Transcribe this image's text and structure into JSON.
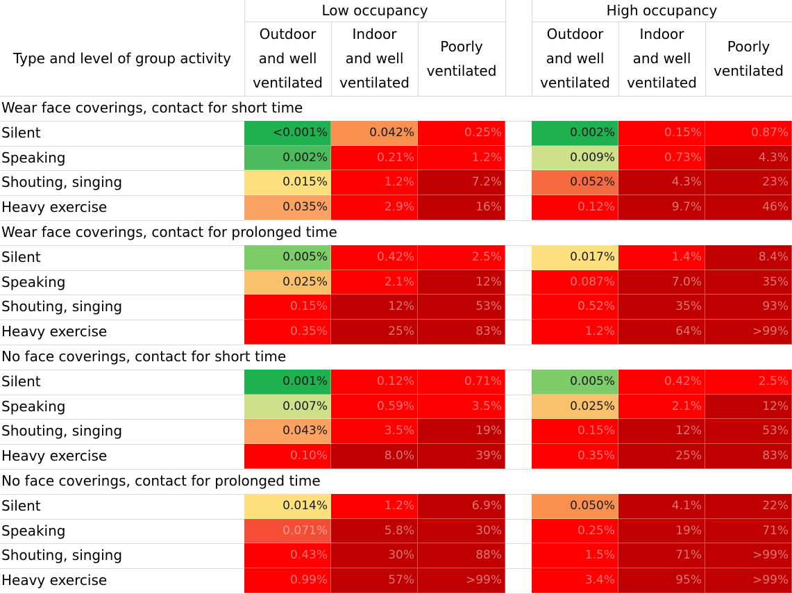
{
  "header": {
    "row_label": "Type and level of group activity",
    "groups": [
      "Low occupancy",
      "High occupancy"
    ],
    "columns": [
      "Outdoor\nand well\nventilated",
      "Indoor\nand well\nventilated",
      "Poorly\nventilated"
    ]
  },
  "colors": {
    "very_low": "#1fb04f",
    "low": "#4cbb5e",
    "lowish": "#7ecb6a",
    "low_mid": "#cfe08a",
    "mid_yellow": "#fde07e",
    "mid_light_orange": "#f9c06c",
    "mid_orange": "#f9a262",
    "orange": "#f89050",
    "orange_red": "#f56a40",
    "red_orange": "#f44d35",
    "high": "#ff0000",
    "very_high": "#c00000"
  },
  "chart_data": {
    "type": "table",
    "title": "",
    "column_groups": [
      "Low occupancy",
      "High occupancy"
    ],
    "columns": [
      "Outdoor and well ventilated",
      "Indoor and well ventilated",
      "Poorly ventilated"
    ],
    "sections": [
      {
        "name": "Wear face coverings, contact for short time",
        "rows": [
          {
            "label": "Silent",
            "values": [
              "<0.001%",
              "0.042%",
              "0.25%",
              "0.002%",
              "0.15%",
              "0.87%"
            ],
            "colors": [
              "very_low",
              "orange",
              "high",
              "very_low",
              "high",
              "high"
            ]
          },
          {
            "label": "Speaking",
            "values": [
              "0.002%",
              "0.21%",
              "1.2%",
              "0.009%",
              "0.73%",
              "4.3%"
            ],
            "colors": [
              "low",
              "high",
              "high",
              "low_mid",
              "high",
              "very_high"
            ]
          },
          {
            "label": "Shouting, singing",
            "values": [
              "0.015%",
              "1.2%",
              "7.2%",
              "0.052%",
              "4.3%",
              "23%"
            ],
            "colors": [
              "mid_yellow",
              "high",
              "very_high",
              "orange_red",
              "very_high",
              "very_high"
            ]
          },
          {
            "label": "Heavy exercise",
            "values": [
              "0.035%",
              "2.9%",
              "16%",
              "0.12%",
              "9.7%",
              "46%"
            ],
            "colors": [
              "mid_orange",
              "high",
              "very_high",
              "high",
              "very_high",
              "very_high"
            ]
          }
        ]
      },
      {
        "name": "Wear face coverings, contact for prolonged time",
        "rows": [
          {
            "label": "Silent",
            "values": [
              "0.005%",
              "0.42%",
              "2.5%",
              "0.017%",
              "1.4%",
              "8.4%"
            ],
            "colors": [
              "lowish",
              "high",
              "high",
              "mid_yellow",
              "high",
              "very_high"
            ]
          },
          {
            "label": "Speaking",
            "values": [
              "0.025%",
              "2.1%",
              "12%",
              "0.087%",
              "7.0%",
              "35%"
            ],
            "colors": [
              "mid_light_orange",
              "high",
              "very_high",
              "high",
              "very_high",
              "very_high"
            ]
          },
          {
            "label": "Shouting, singing",
            "values": [
              "0.15%",
              "12%",
              "53%",
              "0.52%",
              "35%",
              "93%"
            ],
            "colors": [
              "high",
              "very_high",
              "very_high",
              "high",
              "very_high",
              "very_high"
            ]
          },
          {
            "label": "Heavy exercise",
            "values": [
              "0.35%",
              "25%",
              "83%",
              "1.2%",
              "64%",
              ">99%"
            ],
            "colors": [
              "high",
              "very_high",
              "very_high",
              "high",
              "very_high",
              "very_high"
            ]
          }
        ]
      },
      {
        "name": "No face coverings, contact for short time",
        "rows": [
          {
            "label": "Silent",
            "values": [
              "0.001%",
              "0.12%",
              "0.71%",
              "0.005%",
              "0.42%",
              "2.5%"
            ],
            "colors": [
              "very_low",
              "high",
              "high",
              "lowish",
              "high",
              "high"
            ]
          },
          {
            "label": "Speaking",
            "values": [
              "0.007%",
              "0.59%",
              "3.5%",
              "0.025%",
              "2.1%",
              "12%"
            ],
            "colors": [
              "low_mid",
              "high",
              "high",
              "mid_light_orange",
              "high",
              "very_high"
            ]
          },
          {
            "label": "Shouting, singing",
            "values": [
              "0.043%",
              "3.5%",
              "19%",
              "0.15%",
              "12%",
              "53%"
            ],
            "colors": [
              "mid_orange",
              "high",
              "very_high",
              "high",
              "very_high",
              "very_high"
            ]
          },
          {
            "label": "Heavy exercise",
            "values": [
              "0.10%",
              "8.0%",
              "39%",
              "0.35%",
              "25%",
              "83%"
            ],
            "colors": [
              "high",
              "very_high",
              "very_high",
              "high",
              "very_high",
              "very_high"
            ]
          }
        ]
      },
      {
        "name": "No face coverings, contact for prolonged time",
        "rows": [
          {
            "label": "Silent",
            "values": [
              "0.014%",
              "1.2%",
              "6.9%",
              "0.050%",
              "4.1%",
              "22%"
            ],
            "colors": [
              "mid_yellow",
              "high",
              "very_high",
              "orange",
              "very_high",
              "very_high"
            ]
          },
          {
            "label": "Speaking",
            "values": [
              "0.071%",
              "5.8%",
              "30%",
              "0.25%",
              "19%",
              "71%"
            ],
            "colors": [
              "red_orange",
              "very_high",
              "very_high",
              "high",
              "very_high",
              "very_high"
            ]
          },
          {
            "label": "Shouting, singing",
            "values": [
              "0.43%",
              "30%",
              "88%",
              "1.5%",
              "71%",
              ">99%"
            ],
            "colors": [
              "high",
              "very_high",
              "very_high",
              "high",
              "very_high",
              "very_high"
            ]
          },
          {
            "label": "Heavy exercise",
            "values": [
              "0.99%",
              "57%",
              ">99%",
              "3.4%",
              "95%",
              ">99%"
            ],
            "colors": [
              "high",
              "very_high",
              "very_high",
              "high",
              "very_high",
              "very_high"
            ]
          }
        ]
      }
    ]
  }
}
